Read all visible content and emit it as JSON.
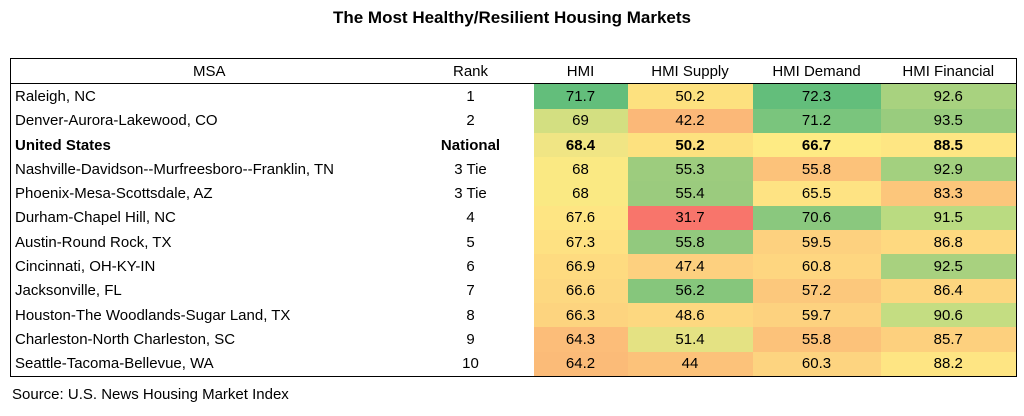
{
  "title": "The Most Healthy/Resilient Housing Markets",
  "headers": [
    "MSA",
    "Rank",
    "HMI",
    "HMI Supply",
    "HMI Demand",
    "HMI Financial"
  ],
  "rows": [
    {
      "msa": "Raleigh, NC",
      "rank": "1",
      "hmi": "71.7",
      "supply": "50.2",
      "demand": "72.3",
      "financial": "92.6",
      "colors": [
        "#63be7b",
        "#fde17f",
        "#63be7b",
        "#a8d27f"
      ],
      "bold": false
    },
    {
      "msa": "Denver-Aurora-Lakewood, CO",
      "rank": "2",
      "hmi": "69",
      "supply": "42.2",
      "demand": "71.2",
      "financial": "93.5",
      "colors": [
        "#d3df81",
        "#fbb878",
        "#7ac57d",
        "#99cc7e"
      ],
      "bold": false
    },
    {
      "msa": "United States",
      "rank": "National",
      "hmi": "68.4",
      "supply": "50.2",
      "demand": "66.7",
      "financial": "88.5",
      "colors": [
        "#f0e584",
        "#fde17f",
        "#feeb84",
        "#fee683"
      ],
      "bold": true
    },
    {
      "msa": "Nashville-Davidson--Murfreesboro--Franklin, TN",
      "rank": "3 Tie",
      "hmi": "68",
      "supply": "55.3",
      "demand": "55.8",
      "financial": "92.9",
      "colors": [
        "#fae983",
        "#9dcc7e",
        "#fcc27a",
        "#a3d07f"
      ],
      "bold": false
    },
    {
      "msa": "Phoenix-Mesa-Scottsdale, AZ",
      "rank": "3 Tie",
      "hmi": "68",
      "supply": "55.4",
      "demand": "65.5",
      "financial": "83.3",
      "colors": [
        "#fae983",
        "#9bcb7e",
        "#fee383",
        "#fcc67b"
      ],
      "bold": false
    },
    {
      "msa": "Durham-Chapel Hill, NC",
      "rank": "4",
      "hmi": "67.6",
      "supply": "31.7",
      "demand": "70.6",
      "financial": "91.5",
      "colors": [
        "#fee583",
        "#f8756b",
        "#8ac87e",
        "#badb81"
      ],
      "bold": false
    },
    {
      "msa": "Austin-Round Rock, TX",
      "rank": "5",
      "hmi": "67.3",
      "supply": "55.8",
      "demand": "59.5",
      "financial": "86.8",
      "colors": [
        "#fee182",
        "#92c97e",
        "#fdd17f",
        "#fed980"
      ],
      "bold": false
    },
    {
      "msa": "Cincinnati, OH-KY-IN",
      "rank": "6",
      "hmi": "66.9",
      "supply": "47.4",
      "demand": "60.8",
      "financial": "92.5",
      "colors": [
        "#fedb80",
        "#fdd07f",
        "#fed680",
        "#a8d17f"
      ],
      "bold": false
    },
    {
      "msa": "Jacksonville, FL",
      "rank": "7",
      "hmi": "66.6",
      "supply": "56.2",
      "demand": "57.2",
      "financial": "86.4",
      "colors": [
        "#fdd880",
        "#86c67c",
        "#fcc87c",
        "#fdd67f"
      ],
      "bold": false
    },
    {
      "msa": "Houston-The Woodlands-Sugar Land, TX",
      "rank": "8",
      "hmi": "66.3",
      "supply": "48.6",
      "demand": "59.7",
      "financial": "90.6",
      "colors": [
        "#fdd47f",
        "#fdd880",
        "#fdd27f",
        "#c4dd82"
      ],
      "bold": false
    },
    {
      "msa": "Charleston-North Charleston, SC",
      "rank": "9",
      "hmi": "64.3",
      "supply": "51.4",
      "demand": "55.8",
      "financial": "85.7",
      "colors": [
        "#fcbd79",
        "#e4e283",
        "#fcc27a",
        "#fdd07e"
      ],
      "bold": false
    },
    {
      "msa": "Seattle-Tacoma-Bellevue, WA",
      "rank": "10",
      "hmi": "64.2",
      "supply": "44",
      "demand": "60.3",
      "financial": "88.2",
      "colors": [
        "#fbbb78",
        "#fcc27a",
        "#fdd480",
        "#fee583"
      ],
      "bold": false
    }
  ],
  "source": "Source:  U.S. News Housing Market Index"
}
